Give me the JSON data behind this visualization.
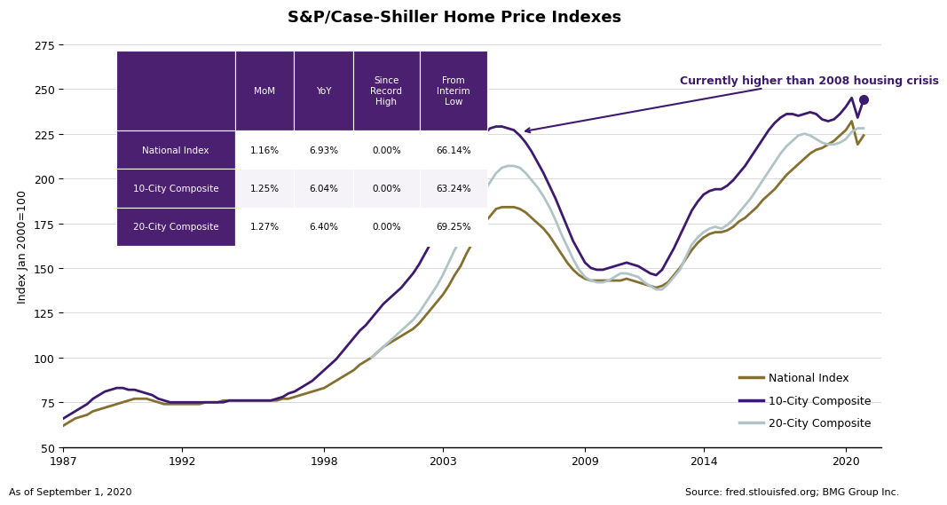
{
  "title": "S&P/Case-Shiller Home Price Indexes",
  "ylabel": "Index Jan 2000=100",
  "ylim": [
    50,
    275
  ],
  "yticks": [
    50,
    75,
    100,
    125,
    150,
    175,
    200,
    225,
    250,
    275
  ],
  "xlim_start": 1987.0,
  "xlim_end": 2021.5,
  "xtick_positions": [
    1987,
    1992,
    1998,
    2003,
    2009,
    2014,
    2020
  ],
  "xtick_labels": [
    "1987",
    "1992",
    "1998",
    "2003",
    "2009",
    "2014",
    "2020"
  ],
  "footer_left": "As of September 1, 2020",
  "footer_right": "Source: fred.stlouisfed.org; BMG Group Inc.",
  "annotation_text": "Currently higher than 2008 housing crisis",
  "color_national": "#857030",
  "color_10city": "#3D1A6E",
  "color_20city": "#B0C4C8",
  "table_header_bg": "#4B2070",
  "legend_labels": [
    "National Index",
    "10-City Composite",
    "20-City Composite"
  ],
  "table_headers": [
    "",
    "MoM",
    "YoY",
    "Since\nRecord\nHigh",
    "From\nInterim\nLow"
  ],
  "table_rows": [
    [
      "National Index",
      "1.16%",
      "6.93%",
      "0.00%",
      "66.14%"
    ],
    [
      "10-City Composite",
      "1.25%",
      "6.04%",
      "0.00%",
      "63.24%"
    ],
    [
      "20-City Composite",
      "1.27%",
      "6.40%",
      "0.00%",
      "69.25%"
    ]
  ],
  "national_x": [
    1987.0,
    1987.25,
    1987.5,
    1987.75,
    1988.0,
    1988.25,
    1988.5,
    1988.75,
    1989.0,
    1989.25,
    1989.5,
    1989.75,
    1990.0,
    1990.25,
    1990.5,
    1990.75,
    1991.0,
    1991.25,
    1991.5,
    1991.75,
    1992.0,
    1992.25,
    1992.5,
    1992.75,
    1993.0,
    1993.25,
    1993.5,
    1993.75,
    1994.0,
    1994.25,
    1994.5,
    1994.75,
    1995.0,
    1995.25,
    1995.5,
    1995.75,
    1996.0,
    1996.25,
    1996.5,
    1996.75,
    1997.0,
    1997.25,
    1997.5,
    1997.75,
    1998.0,
    1998.25,
    1998.5,
    1998.75,
    1999.0,
    1999.25,
    1999.5,
    1999.75,
    2000.0,
    2000.25,
    2000.5,
    2000.75,
    2001.0,
    2001.25,
    2001.5,
    2001.75,
    2002.0,
    2002.25,
    2002.5,
    2002.75,
    2003.0,
    2003.25,
    2003.5,
    2003.75,
    2004.0,
    2004.25,
    2004.5,
    2004.75,
    2005.0,
    2005.25,
    2005.5,
    2005.75,
    2006.0,
    2006.25,
    2006.5,
    2006.75,
    2007.0,
    2007.25,
    2007.5,
    2007.75,
    2008.0,
    2008.25,
    2008.5,
    2008.75,
    2009.0,
    2009.25,
    2009.5,
    2009.75,
    2010.0,
    2010.25,
    2010.5,
    2010.75,
    2011.0,
    2011.25,
    2011.5,
    2011.75,
    2012.0,
    2012.25,
    2012.5,
    2012.75,
    2013.0,
    2013.25,
    2013.5,
    2013.75,
    2014.0,
    2014.25,
    2014.5,
    2014.75,
    2015.0,
    2015.25,
    2015.5,
    2015.75,
    2016.0,
    2016.25,
    2016.5,
    2016.75,
    2017.0,
    2017.25,
    2017.5,
    2017.75,
    2018.0,
    2018.25,
    2018.5,
    2018.75,
    2019.0,
    2019.25,
    2019.5,
    2019.75,
    2020.0,
    2020.25,
    2020.5,
    2020.75
  ],
  "national_y": [
    62,
    64,
    66,
    67,
    68,
    70,
    71,
    72,
    73,
    74,
    75,
    76,
    77,
    77,
    77,
    76,
    75,
    74,
    74,
    74,
    74,
    74,
    74,
    74,
    75,
    75,
    75,
    76,
    76,
    76,
    76,
    76,
    76,
    76,
    76,
    76,
    76,
    77,
    77,
    78,
    79,
    80,
    81,
    82,
    83,
    85,
    87,
    89,
    91,
    93,
    96,
    98,
    100,
    103,
    106,
    108,
    110,
    112,
    114,
    116,
    119,
    123,
    127,
    131,
    135,
    140,
    146,
    151,
    158,
    164,
    169,
    175,
    179,
    183,
    184,
    184,
    184,
    183,
    181,
    178,
    175,
    172,
    168,
    163,
    158,
    153,
    149,
    146,
    144,
    143,
    143,
    143,
    143,
    143,
    143,
    144,
    143,
    142,
    141,
    140,
    139,
    140,
    142,
    146,
    150,
    155,
    160,
    164,
    167,
    169,
    170,
    170,
    171,
    173,
    176,
    178,
    181,
    184,
    188,
    191,
    194,
    198,
    202,
    205,
    208,
    211,
    214,
    216,
    217,
    219,
    221,
    224,
    227,
    232,
    219,
    224
  ],
  "city10_x": [
    1987.0,
    1987.25,
    1987.5,
    1987.75,
    1988.0,
    1988.25,
    1988.5,
    1988.75,
    1989.0,
    1989.25,
    1989.5,
    1989.75,
    1990.0,
    1990.25,
    1990.5,
    1990.75,
    1991.0,
    1991.25,
    1991.5,
    1991.75,
    1992.0,
    1992.25,
    1992.5,
    1992.75,
    1993.0,
    1993.25,
    1993.5,
    1993.75,
    1994.0,
    1994.25,
    1994.5,
    1994.75,
    1995.0,
    1995.25,
    1995.5,
    1995.75,
    1996.0,
    1996.25,
    1996.5,
    1996.75,
    1997.0,
    1997.25,
    1997.5,
    1997.75,
    1998.0,
    1998.25,
    1998.5,
    1998.75,
    1999.0,
    1999.25,
    1999.5,
    1999.75,
    2000.0,
    2000.25,
    2000.5,
    2000.75,
    2001.0,
    2001.25,
    2001.5,
    2001.75,
    2002.0,
    2002.25,
    2002.5,
    2002.75,
    2003.0,
    2003.25,
    2003.5,
    2003.75,
    2004.0,
    2004.25,
    2004.5,
    2004.75,
    2005.0,
    2005.25,
    2005.5,
    2005.75,
    2006.0,
    2006.25,
    2006.5,
    2006.75,
    2007.0,
    2007.25,
    2007.5,
    2007.75,
    2008.0,
    2008.25,
    2008.5,
    2008.75,
    2009.0,
    2009.25,
    2009.5,
    2009.75,
    2010.0,
    2010.25,
    2010.5,
    2010.75,
    2011.0,
    2011.25,
    2011.5,
    2011.75,
    2012.0,
    2012.25,
    2012.5,
    2012.75,
    2013.0,
    2013.25,
    2013.5,
    2013.75,
    2014.0,
    2014.25,
    2014.5,
    2014.75,
    2015.0,
    2015.25,
    2015.5,
    2015.75,
    2016.0,
    2016.25,
    2016.5,
    2016.75,
    2017.0,
    2017.25,
    2017.5,
    2017.75,
    2018.0,
    2018.25,
    2018.5,
    2018.75,
    2019.0,
    2019.25,
    2019.5,
    2019.75,
    2020.0,
    2020.25,
    2020.5,
    2020.75
  ],
  "city10_y": [
    66,
    68,
    70,
    72,
    74,
    77,
    79,
    81,
    82,
    83,
    83,
    82,
    82,
    81,
    80,
    79,
    77,
    76,
    75,
    75,
    75,
    75,
    75,
    75,
    75,
    75,
    75,
    75,
    76,
    76,
    76,
    76,
    76,
    76,
    76,
    76,
    77,
    78,
    80,
    81,
    83,
    85,
    87,
    90,
    93,
    96,
    99,
    103,
    107,
    111,
    115,
    118,
    122,
    126,
    130,
    133,
    136,
    139,
    143,
    147,
    152,
    158,
    164,
    170,
    177,
    185,
    193,
    200,
    208,
    216,
    221,
    225,
    228,
    229,
    229,
    228,
    227,
    224,
    220,
    215,
    209,
    203,
    196,
    189,
    181,
    173,
    165,
    159,
    153,
    150,
    149,
    149,
    150,
    151,
    152,
    153,
    152,
    151,
    149,
    147,
    146,
    149,
    155,
    161,
    168,
    175,
    182,
    187,
    191,
    193,
    194,
    194,
    196,
    199,
    203,
    207,
    212,
    217,
    222,
    227,
    231,
    234,
    236,
    236,
    235,
    236,
    237,
    236,
    233,
    232,
    233,
    236,
    240,
    245,
    234,
    244
  ],
  "city20_x": [
    2000.0,
    2000.25,
    2000.5,
    2000.75,
    2001.0,
    2001.25,
    2001.5,
    2001.75,
    2002.0,
    2002.25,
    2002.5,
    2002.75,
    2003.0,
    2003.25,
    2003.5,
    2003.75,
    2004.0,
    2004.25,
    2004.5,
    2004.75,
    2005.0,
    2005.25,
    2005.5,
    2005.75,
    2006.0,
    2006.25,
    2006.5,
    2006.75,
    2007.0,
    2007.25,
    2007.5,
    2007.75,
    2008.0,
    2008.25,
    2008.5,
    2008.75,
    2009.0,
    2009.25,
    2009.5,
    2009.75,
    2010.0,
    2010.25,
    2010.5,
    2010.75,
    2011.0,
    2011.25,
    2011.5,
    2011.75,
    2012.0,
    2012.25,
    2012.5,
    2012.75,
    2013.0,
    2013.25,
    2013.5,
    2013.75,
    2014.0,
    2014.25,
    2014.5,
    2014.75,
    2015.0,
    2015.25,
    2015.5,
    2015.75,
    2016.0,
    2016.25,
    2016.5,
    2016.75,
    2017.0,
    2017.25,
    2017.5,
    2017.75,
    2018.0,
    2018.25,
    2018.5,
    2018.75,
    2019.0,
    2019.25,
    2019.5,
    2019.75,
    2020.0,
    2020.25,
    2020.5,
    2020.75
  ],
  "city20_y": [
    100,
    103,
    106,
    109,
    112,
    115,
    118,
    121,
    125,
    130,
    135,
    140,
    146,
    153,
    160,
    166,
    173,
    180,
    187,
    193,
    198,
    203,
    206,
    207,
    207,
    206,
    203,
    199,
    195,
    190,
    184,
    177,
    169,
    162,
    155,
    149,
    145,
    143,
    142,
    142,
    143,
    145,
    147,
    147,
    146,
    145,
    142,
    140,
    138,
    138,
    141,
    145,
    149,
    156,
    163,
    167,
    170,
    172,
    173,
    172,
    174,
    177,
    181,
    185,
    189,
    194,
    199,
    204,
    209,
    214,
    218,
    221,
    224,
    225,
    224,
    222,
    220,
    219,
    219,
    220,
    222,
    226,
    228,
    228
  ]
}
